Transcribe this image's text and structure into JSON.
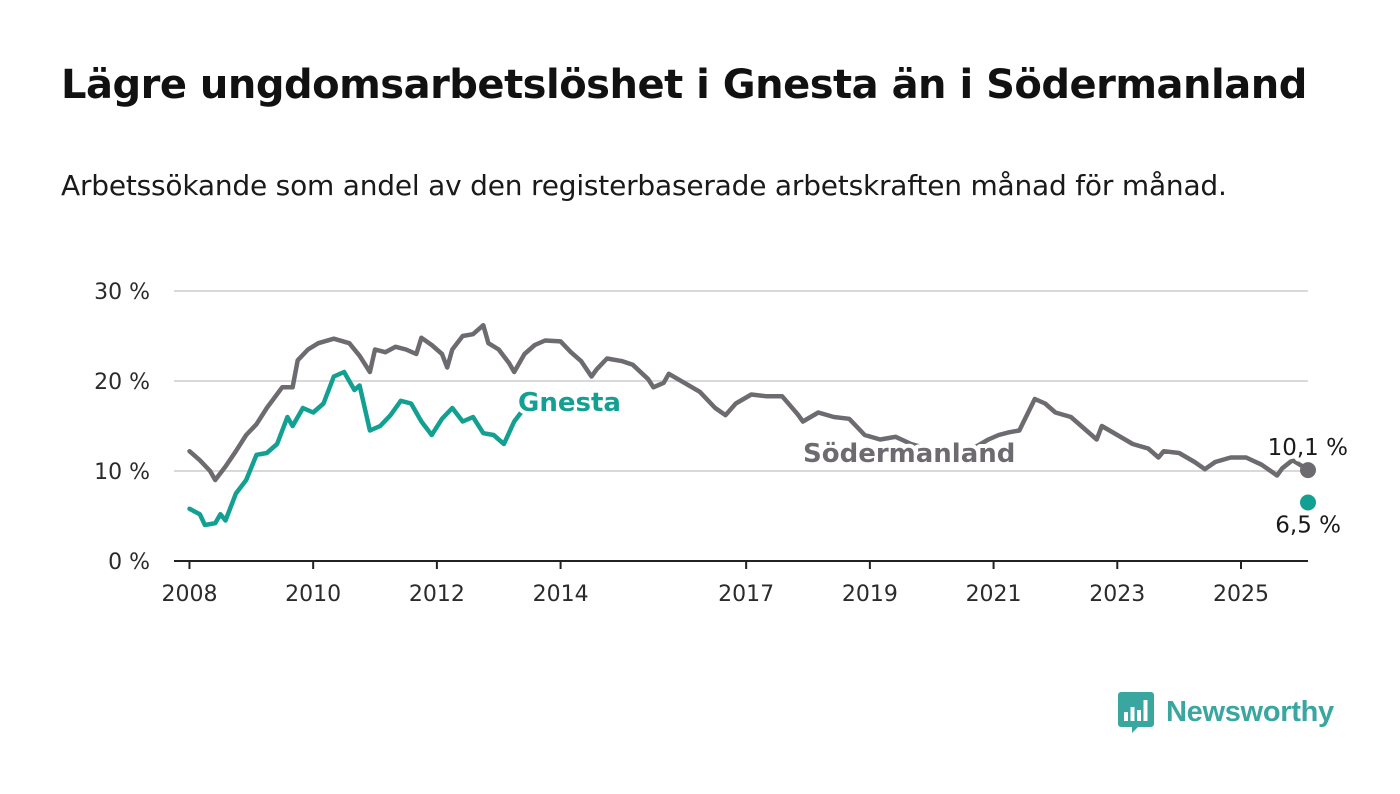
{
  "header": {
    "title": "Lägre ungdomsarbetslöshet i Gnesta än i Södermanland",
    "subtitle": "Arbetssökande som andel av den registerbaserade arbetskraften månad för månad."
  },
  "brand": {
    "name": "Newsworthy",
    "color": "#3aa6a0"
  },
  "chart_data": {
    "type": "line",
    "title": "Lägre ungdomsarbetslöshet i Gnesta än i Södermanland",
    "subtitle": "Arbetssökande som andel av den registerbaserade arbetskraften månad för månad.",
    "ylim": [
      0,
      30
    ],
    "y_ticks": [
      0,
      10,
      20,
      30
    ],
    "y_tick_labels": [
      "0 %",
      "10 %",
      "20 %",
      "30 %"
    ],
    "x_range": [
      "2007-10",
      "2026-02"
    ],
    "x_ticks": [
      "2008",
      "2010",
      "2012",
      "2014",
      "2017",
      "2019",
      "2021",
      "2023",
      "2025"
    ],
    "grid": true,
    "legend": "none (direct labels on lines)",
    "series": [
      {
        "name": "Södermanland",
        "color": "#6e6b70",
        "end_label": "10,1 %",
        "points": [
          [
            "2008-01",
            12.2
          ],
          [
            "2008-03",
            11.2
          ],
          [
            "2008-05",
            10.0
          ],
          [
            "2008-06",
            9.0
          ],
          [
            "2008-08",
            10.5
          ],
          [
            "2008-10",
            12.2
          ],
          [
            "2008-12",
            14.0
          ],
          [
            "2009-02",
            15.2
          ],
          [
            "2009-04",
            17.0
          ],
          [
            "2009-07",
            19.3
          ],
          [
            "2009-09",
            19.3
          ],
          [
            "2009-10",
            22.3
          ],
          [
            "2009-12",
            23.5
          ],
          [
            "2010-02",
            24.2
          ],
          [
            "2010-05",
            24.7
          ],
          [
            "2010-08",
            24.2
          ],
          [
            "2010-10",
            22.8
          ],
          [
            "2010-12",
            21.0
          ],
          [
            "2011-01",
            23.5
          ],
          [
            "2011-03",
            23.2
          ],
          [
            "2011-05",
            23.8
          ],
          [
            "2011-07",
            23.5
          ],
          [
            "2011-09",
            23.0
          ],
          [
            "2011-10",
            24.8
          ],
          [
            "2011-12",
            24.0
          ],
          [
            "2012-02",
            23.0
          ],
          [
            "2012-03",
            21.5
          ],
          [
            "2012-04",
            23.5
          ],
          [
            "2012-06",
            25.0
          ],
          [
            "2012-08",
            25.2
          ],
          [
            "2012-10",
            26.2
          ],
          [
            "2012-11",
            24.2
          ],
          [
            "2013-01",
            23.5
          ],
          [
            "2013-03",
            22.0
          ],
          [
            "2013-04",
            21.0
          ],
          [
            "2013-06",
            23.0
          ],
          [
            "2013-08",
            24.0
          ],
          [
            "2013-10",
            24.5
          ],
          [
            "2014-01",
            24.4
          ],
          [
            "2014-03",
            23.2
          ],
          [
            "2014-05",
            22.2
          ],
          [
            "2014-07",
            20.5
          ],
          [
            "2014-08",
            21.3
          ],
          [
            "2014-10",
            22.5
          ],
          [
            "2015-01",
            22.2
          ],
          [
            "2015-03",
            21.8
          ],
          [
            "2015-06",
            20.2
          ],
          [
            "2015-07",
            19.3
          ],
          [
            "2015-09",
            19.8
          ],
          [
            "2015-10",
            20.8
          ],
          [
            "2016-01",
            19.8
          ],
          [
            "2016-04",
            18.8
          ],
          [
            "2016-07",
            17.0
          ],
          [
            "2016-09",
            16.2
          ],
          [
            "2016-11",
            17.5
          ],
          [
            "2017-02",
            18.5
          ],
          [
            "2017-05",
            18.3
          ],
          [
            "2017-08",
            18.3
          ],
          [
            "2017-11",
            16.3
          ],
          [
            "2017-12",
            15.5
          ],
          [
            "2018-03",
            16.5
          ],
          [
            "2018-06",
            16.0
          ],
          [
            "2018-09",
            15.8
          ],
          [
            "2018-12",
            14.0
          ],
          [
            "2019-03",
            13.5
          ],
          [
            "2019-06",
            13.8
          ],
          [
            "2019-09",
            13.0
          ],
          [
            "2019-12",
            12.5
          ],
          [
            "2020-03",
            12.0
          ],
          [
            "2020-06",
            12.5
          ],
          [
            "2020-09",
            12.5
          ],
          [
            "2020-12",
            13.5
          ],
          [
            "2021-02",
            14.0
          ],
          [
            "2021-04",
            14.3
          ],
          [
            "2021-06",
            14.5
          ],
          [
            "2021-09",
            18.0
          ],
          [
            "2021-11",
            17.5
          ],
          [
            "2022-01",
            16.5
          ],
          [
            "2022-04",
            16.0
          ],
          [
            "2022-07",
            14.5
          ],
          [
            "2022-09",
            13.5
          ],
          [
            "2022-10",
            15.0
          ],
          [
            "2023-01",
            14.0
          ],
          [
            "2023-04",
            13.0
          ],
          [
            "2023-07",
            12.5
          ],
          [
            "2023-09",
            11.5
          ],
          [
            "2023-10",
            12.2
          ],
          [
            "2024-01",
            12.0
          ],
          [
            "2024-04",
            11.0
          ],
          [
            "2024-06",
            10.2
          ],
          [
            "2024-08",
            11.0
          ],
          [
            "2024-11",
            11.5
          ],
          [
            "2025-02",
            11.5
          ],
          [
            "2025-05",
            10.7
          ],
          [
            "2025-08",
            9.5
          ],
          [
            "2025-09",
            10.3
          ],
          [
            "2025-11",
            11.2
          ],
          [
            "2026-01",
            10.5
          ],
          [
            "2026-02",
            10.1
          ]
        ]
      },
      {
        "name": "Gnesta",
        "color": "#13a092",
        "end_label": "6,5 %",
        "points": [
          [
            "2008-01",
            5.8
          ],
          [
            "2008-03",
            5.2
          ],
          [
            "2008-04",
            4.0
          ],
          [
            "2008-06",
            4.2
          ],
          [
            "2008-07",
            5.2
          ],
          [
            "2008-08",
            4.5
          ],
          [
            "2008-10",
            7.5
          ],
          [
            "2008-12",
            9.0
          ],
          [
            "2009-02",
            11.8
          ],
          [
            "2009-04",
            12.0
          ],
          [
            "2009-06",
            13.0
          ],
          [
            "2009-08",
            16.0
          ],
          [
            "2009-09",
            15.0
          ],
          [
            "2009-11",
            17.0
          ],
          [
            "2010-01",
            16.5
          ],
          [
            "2010-03",
            17.5
          ],
          [
            "2010-05",
            20.5
          ],
          [
            "2010-07",
            21.0
          ],
          [
            "2010-09",
            19.0
          ],
          [
            "2010-10",
            19.5
          ],
          [
            "2010-12",
            14.5
          ],
          [
            "2011-02",
            15.0
          ],
          [
            "2011-04",
            16.2
          ],
          [
            "2011-06",
            17.8
          ],
          [
            "2011-08",
            17.5
          ],
          [
            "2011-10",
            15.5
          ],
          [
            "2011-12",
            14.0
          ],
          [
            "2012-02",
            15.8
          ],
          [
            "2012-04",
            17.0
          ],
          [
            "2012-06",
            15.5
          ],
          [
            "2012-08",
            16.0
          ],
          [
            "2012-10",
            14.2
          ],
          [
            "2012-12",
            14.0
          ],
          [
            "2013-02",
            13.0
          ],
          [
            "2013-04",
            15.5
          ],
          [
            "2013-06",
            17.0
          ],
          [
            "2013-08",
            17.5
          ],
          [
            "2013-09",
            17.2
          ]
        ]
      }
    ],
    "labels": [
      {
        "text": "Gnesta",
        "series": "Gnesta"
      },
      {
        "text": "Södermanland",
        "series": "Södermanland"
      },
      {
        "text": "10,1 %",
        "series": "Södermanland"
      },
      {
        "text": "6,5 %",
        "series": "Gnesta"
      }
    ]
  }
}
